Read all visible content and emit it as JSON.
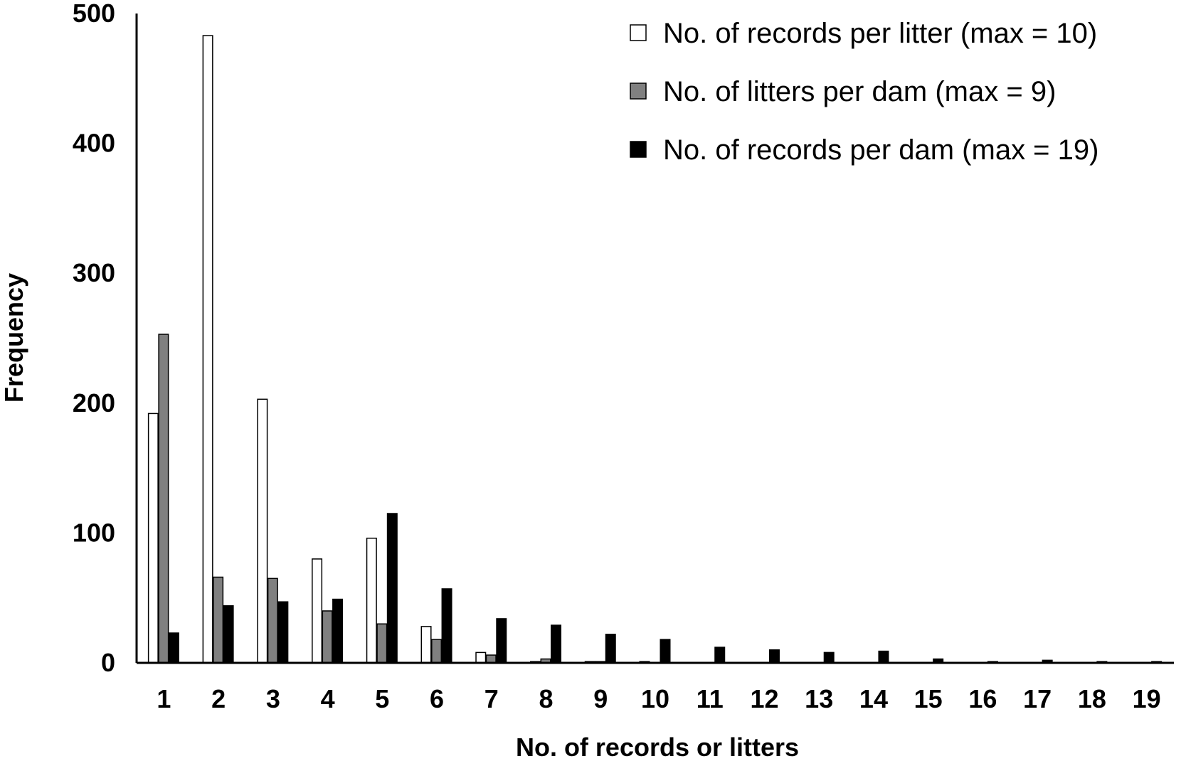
{
  "chart_data": {
    "type": "bar",
    "title": "",
    "xlabel": "No. of records or litters",
    "ylabel": "Frequency",
    "ylim": [
      0,
      500
    ],
    "yticks": [
      0,
      100,
      200,
      300,
      400,
      500
    ],
    "grid": false,
    "legend_position": "top-right",
    "categories": [
      "1",
      "2",
      "3",
      "4",
      "5",
      "6",
      "7",
      "8",
      "9",
      "10",
      "11",
      "12",
      "13",
      "14",
      "15",
      "16",
      "17",
      "18",
      "19"
    ],
    "series": [
      {
        "name": "No. of records per litter (max = 10)",
        "fill": "#ffffff",
        "values": [
          192,
          483,
          203,
          80,
          96,
          28,
          8,
          1,
          1,
          1,
          0,
          0,
          0,
          0,
          0,
          0,
          0,
          0,
          0
        ]
      },
      {
        "name": "No. of litters per dam (max = 9)",
        "fill": "#808080",
        "values": [
          253,
          66,
          65,
          40,
          30,
          18,
          6,
          3,
          1,
          0,
          0,
          0,
          0,
          0,
          0,
          0,
          0,
          0,
          0
        ]
      },
      {
        "name": "No. of records per dam (max = 19)",
        "fill": "#000000",
        "values": [
          23,
          44,
          47,
          49,
          115,
          57,
          34,
          29,
          22,
          18,
          12,
          10,
          8,
          9,
          3,
          1,
          2,
          1,
          1
        ]
      }
    ]
  }
}
